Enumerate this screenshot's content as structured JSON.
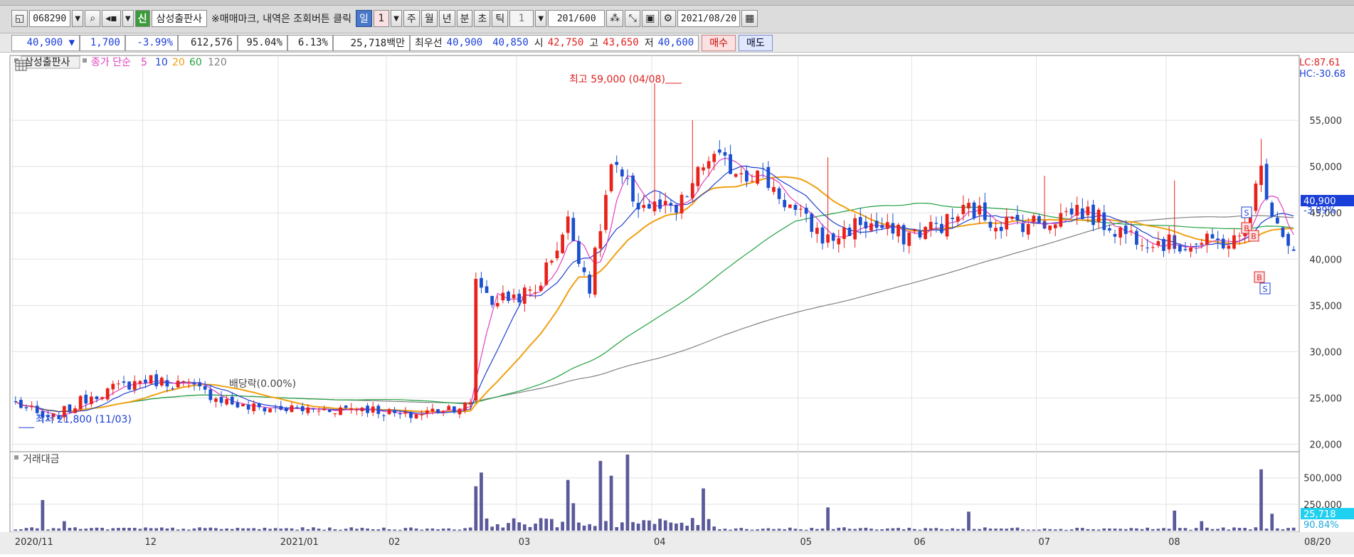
{
  "toolbar": {
    "code": "068290",
    "market_badge": "신",
    "stock_name": "삼성출판사",
    "hint": "※매매마크, 내역은 조회버튼 클릭",
    "periods": [
      "일",
      "1",
      "주",
      "월",
      "년",
      "분",
      "초",
      "틱",
      "1"
    ],
    "count": "201",
    "count_max": "/600",
    "date": "2021/08/20"
  },
  "quote": {
    "price": "40,900 ▼",
    "change": "1,700",
    "change_pct": "-3.99%",
    "volume": "612,576",
    "vol_ratio": "95.04%",
    "turnover": "6.13%",
    "amount": "25,718백만",
    "bidask_label": "최우선",
    "ask": "40,900",
    "bid": "40,850",
    "open_label": "시",
    "open": "42,750",
    "high_label": "고",
    "high": "43,650",
    "low_label": "저",
    "low": "40,600",
    "buy_label": "매수",
    "sell_label": "매도"
  },
  "price_panel": {
    "title": "삼성출판사",
    "ma_label": "종가 단순",
    "ma_periods": [
      "5",
      "10",
      "20",
      "60",
      "120"
    ],
    "ma_colors": {
      "5": "#e040c0",
      "10": "#2040d0",
      "20": "#f0a010",
      "60": "#20a040",
      "120": "#808080"
    },
    "lc": "LC:87.61",
    "hc": "HC:-30.68",
    "last_price": "40,900",
    "last_pct": "-3.99%",
    "annot_high": "최고 59,000 (04/08)",
    "annot_low": "최저 21,800 (11/03)",
    "annot_div": "배당락(0.00%)",
    "signals": [
      "S",
      "B",
      "B",
      "B",
      "S"
    ]
  },
  "volume_panel": {
    "title": "거래대금",
    "last_value": "25,718",
    "last_pct": "90.84%"
  },
  "chart_data": {
    "type": "candlestick",
    "x_ticks": [
      "2020/11",
      "12",
      "2021/01",
      "02",
      "03",
      "04",
      "05",
      "06",
      "07",
      "08",
      "08/20"
    ],
    "y_ticks": [
      "55,000",
      "50,000",
      "45,000",
      "40,000",
      "35,000",
      "30,000",
      "25,000",
      "20,000"
    ],
    "ylim": [
      19500,
      62000
    ],
    "vol_ticks": [
      "500,000",
      "250,000"
    ],
    "vol_max": 720000,
    "anchors": [
      [
        0,
        24500
      ],
      [
        6,
        22500
      ],
      [
        14,
        25300
      ],
      [
        24,
        27000
      ],
      [
        31,
        26500
      ],
      [
        42,
        24000
      ],
      [
        55,
        23700
      ],
      [
        64,
        24000
      ],
      [
        72,
        23000
      ],
      [
        80,
        24000
      ],
      [
        84,
        24200
      ],
      [
        85,
        38000
      ],
      [
        88,
        35500
      ],
      [
        96,
        36500
      ],
      [
        102,
        44000
      ],
      [
        106,
        37000
      ],
      [
        110,
        50000
      ],
      [
        115,
        46000
      ],
      [
        122,
        45000
      ],
      [
        128,
        51000
      ],
      [
        132,
        50000
      ],
      [
        138,
        49000
      ],
      [
        144,
        45000
      ],
      [
        150,
        42000
      ],
      [
        156,
        44000
      ],
      [
        164,
        42500
      ],
      [
        172,
        44000
      ],
      [
        176,
        45500
      ],
      [
        181,
        44000
      ],
      [
        190,
        44000
      ],
      [
        196,
        45500
      ],
      [
        204,
        43000
      ],
      [
        214,
        41500
      ],
      [
        226,
        42000
      ],
      [
        230,
        49500
      ],
      [
        232,
        45500
      ],
      [
        234,
        43000
      ],
      [
        236,
        40900
      ]
    ],
    "volume_spikes": [
      [
        5,
        290000
      ],
      [
        9,
        90000
      ],
      [
        86,
        550000
      ],
      [
        85,
        420000
      ],
      [
        102,
        480000
      ],
      [
        103,
        260000
      ],
      [
        108,
        660000
      ],
      [
        110,
        520000
      ],
      [
        113,
        720000
      ],
      [
        127,
        400000
      ],
      [
        150,
        220000
      ],
      [
        176,
        180000
      ],
      [
        214,
        190000
      ],
      [
        219,
        90000
      ],
      [
        230,
        580000
      ],
      [
        232,
        160000
      ]
    ],
    "x_tick_index": [
      0,
      24,
      49,
      69,
      93,
      118,
      145,
      166,
      189,
      213,
      236
    ]
  }
}
